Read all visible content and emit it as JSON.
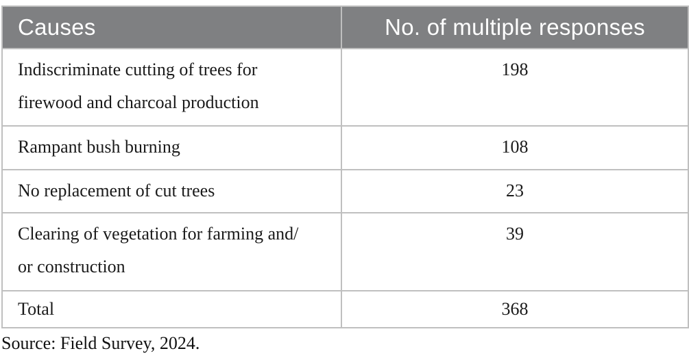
{
  "table": {
    "columns": [
      "Causes",
      "No. of multiple responses"
    ],
    "rows": [
      {
        "cause": "Indiscriminate cutting of trees for\nfirewood and charcoal production",
        "responses": "198"
      },
      {
        "cause": "Rampant bush burning",
        "responses": "108"
      },
      {
        "cause": "No replacement of cut trees",
        "responses": "23"
      },
      {
        "cause": "Clearing of vegetation for farming and/\nor construction",
        "responses": "39"
      },
      {
        "cause": "Total",
        "responses": "368"
      }
    ],
    "source_note": "Source: Field Survey, 2024."
  },
  "colors": {
    "header_background": "#7f8082",
    "header_text": "#ffffff",
    "cell_border": "#bfbfbf",
    "body_text": "#1a1a1a",
    "page_background": "#ffffff"
  },
  "chart_data": {
    "type": "table",
    "title": "",
    "columns": [
      "Causes",
      "No. of multiple responses"
    ],
    "categories": [
      "Indiscriminate cutting of trees for firewood and charcoal production",
      "Rampant bush burning",
      "No replacement of cut trees",
      "Clearing of vegetation for farming and/or construction"
    ],
    "values": [
      198,
      108,
      23,
      39
    ],
    "total": 368,
    "source": "Source: Field Survey, 2024."
  }
}
